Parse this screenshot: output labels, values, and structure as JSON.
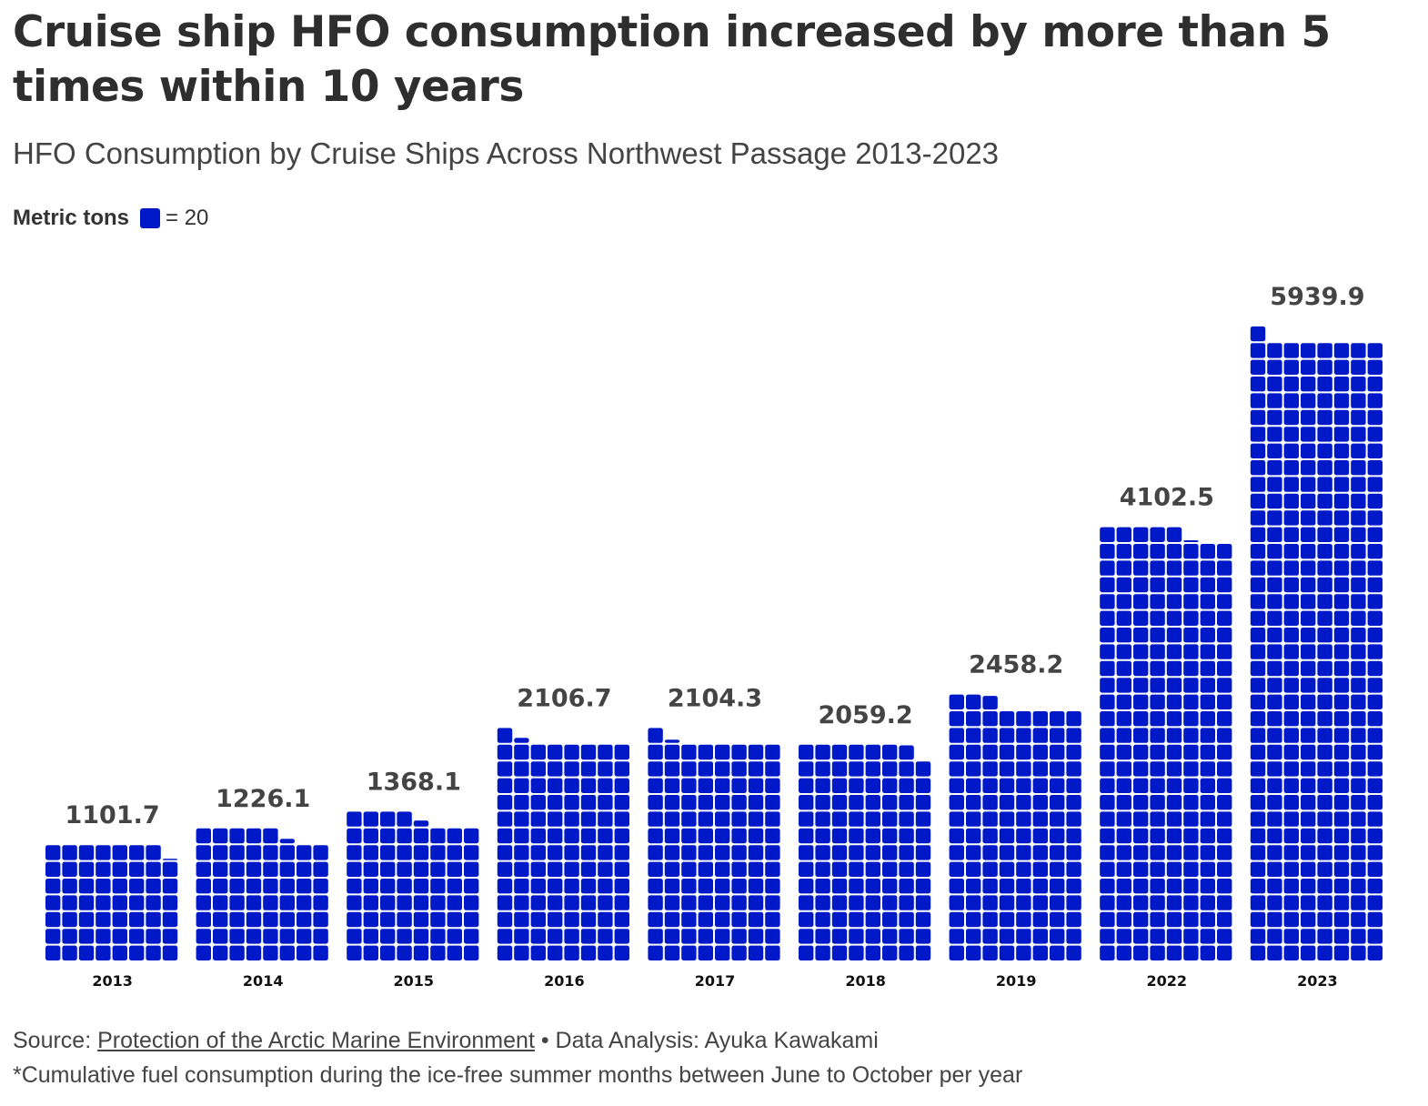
{
  "title": "Cruise ship HFO consumption increased by more than 5 times within 10 years",
  "subtitle": "HFO Consumption by Cruise Ships Across Northwest Passage 2013-2023",
  "legend": {
    "label": "Metric tons",
    "unit_text": "= 20"
  },
  "footer": {
    "source_prefix": "Source: ",
    "source_link": "Protection of the Arctic Marine Environment",
    "source_suffix": " • Data Analysis: Ayuka Kawakami",
    "note": "*Cumulative fuel consumption during the ice-free summer months between June to October per year"
  },
  "chart_data": {
    "type": "waffle",
    "unit_value": 20,
    "squares_per_row": 8,
    "color": "#0019c8",
    "categories": [
      "2013",
      "2014",
      "2015",
      "2016",
      "2017",
      "2018",
      "2019",
      "2022",
      "2023"
    ],
    "values": [
      1101.7,
      1226.1,
      1368.1,
      2106.7,
      2104.3,
      2059.2,
      2458.2,
      4102.5,
      5939.9
    ],
    "value_labels": [
      "1101.7",
      "1226.1",
      "1368.1",
      "2106.7",
      "2104.3",
      "2059.2",
      "2458.2",
      "4102.5",
      "5939.9"
    ]
  }
}
